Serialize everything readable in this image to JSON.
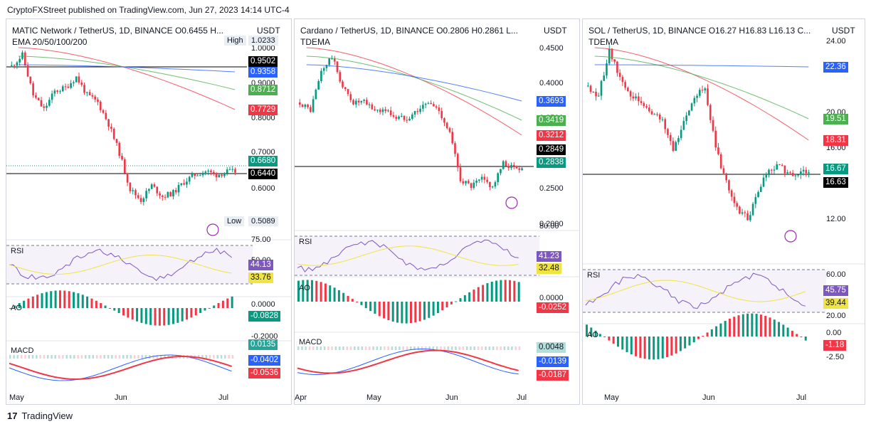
{
  "header": {
    "text": "CryptoFXStreet published on TradingView.com, Jun 27, 2023 14:14 UTC-4"
  },
  "footer": {
    "logo": "17",
    "brand": "TradingView"
  },
  "panels": [
    {
      "title": "MATIC Network / TetherUS, 1D, BINANCE  O0.6455  H...",
      "subtitle": "EMA 20/50/100/200",
      "unit": "USDT",
      "price_labels": [
        "1.0000",
        "0.9000",
        "0.8000",
        "0.7000",
        "0.6000"
      ],
      "badges": [
        {
          "text": "0.9502",
          "color": "#000000"
        },
        {
          "text": "0.9358",
          "color": "#2962ff"
        },
        {
          "text": "0.8712",
          "color": "#4caf50"
        },
        {
          "text": "0.7729",
          "color": "#f23645"
        },
        {
          "text": "0.6680",
          "color": "#089981"
        },
        {
          "text": "0.6440",
          "color": "#000000"
        }
      ],
      "high_label": "High",
      "high_value": "1.0233",
      "low_label": "Low",
      "low_value": "0.5089",
      "rsi_label": "RSI",
      "rsi_levels": [
        "75.00",
        "50.00"
      ],
      "rsi_badges": [
        {
          "text": "44.13",
          "color": "#7e57c2"
        },
        {
          "text": "33.76",
          "color": "#f0e442"
        }
      ],
      "ao_label": "AO",
      "ao_levels": [
        "0.0000",
        "-0.2000"
      ],
      "ao_badge": {
        "text": "-0.0828",
        "color": "#089981"
      },
      "macd_label": "MACD",
      "macd_badges": [
        {
          "text": "0.0135",
          "color": "#26a69a"
        },
        {
          "text": "-0.0402",
          "color": "#2962ff"
        },
        {
          "text": "-0.0536",
          "color": "#f23645"
        }
      ],
      "time_labels": [
        "May",
        "Jun",
        "Jul"
      ]
    },
    {
      "title": "Cardano / TetherUS, 1D, BINANCE  O0.2806  H0.2861  L...",
      "subtitle": "TDEMA",
      "unit": "USDT",
      "price_labels": [
        "0.4500",
        "0.4000",
        "0.3500",
        "0.3000",
        "0.2500",
        "0.2000"
      ],
      "badges": [
        {
          "text": "0.3693",
          "color": "#2962ff"
        },
        {
          "text": "0.3419",
          "color": "#4caf50"
        },
        {
          "text": "0.3212",
          "color": "#f23645"
        },
        {
          "text": "0.2849",
          "color": "#000000"
        },
        {
          "text": "0.2838",
          "color": "#089981"
        }
      ],
      "rsi_label": "RSI",
      "rsi_levels": [
        "80.00"
      ],
      "rsi_badges": [
        {
          "text": "41.23",
          "color": "#7e57c2"
        },
        {
          "text": "32.48",
          "color": "#f0e442"
        }
      ],
      "ao_label": "AO",
      "ao_levels": [
        "0.0000"
      ],
      "ao_badge": {
        "text": "-0.0252",
        "color": "#f23645"
      },
      "macd_label": "MACD",
      "macd_badges": [
        {
          "text": "0.0048",
          "color": "#b2dfdb"
        },
        {
          "text": "-0.0139",
          "color": "#2962ff"
        },
        {
          "text": "-0.0187",
          "color": "#f23645"
        }
      ],
      "time_labels": [
        "Apr",
        "May",
        "Jun",
        "Jul"
      ]
    },
    {
      "title": "SOL / TetherUS, 1D, BINANCE  O16.27  H16.83  L16.13  C...",
      "subtitle": "TDEMA",
      "unit": "USDT",
      "price_labels": [
        "24.00",
        "20.00",
        "16.00",
        "14.00",
        "12.00"
      ],
      "badges": [
        {
          "text": "22.36",
          "color": "#2962ff"
        },
        {
          "text": "19.51",
          "color": "#4caf50"
        },
        {
          "text": "18.31",
          "color": "#f23645"
        },
        {
          "text": "16.67",
          "color": "#089981"
        },
        {
          "text": "16.63",
          "color": "#000000"
        }
      ],
      "rsi_label": "RSI",
      "rsi_levels": [
        "60.00",
        "20.00"
      ],
      "rsi_badges": [
        {
          "text": "45.75",
          "color": "#7e57c2"
        },
        {
          "text": "39.44",
          "color": "#f0e442"
        }
      ],
      "ao_label": "AO",
      "ao_levels": [
        "0.00",
        "-2.50"
      ],
      "ao_badge": {
        "text": "-1.18",
        "color": "#f23645"
      },
      "macd_label": "",
      "macd_badges": [],
      "time_labels": [
        "May",
        "Jun",
        "Jul"
      ]
    }
  ],
  "chart_data": [
    {
      "type": "line",
      "title": "MATIC Network / TetherUS, 1D, BINANCE",
      "x": [
        "May",
        "Jun",
        "Jul"
      ],
      "series": [],
      "ylim": [
        0.5,
        1.05
      ]
    },
    {
      "type": "line",
      "title": "Cardano / TetherUS, 1D, BINANCE",
      "x": [
        "Apr",
        "May",
        "Jun",
        "Jul"
      ],
      "series": [],
      "ylim": [
        0.2,
        0.46
      ]
    },
    {
      "type": "line",
      "title": "SOL / TetherUS, 1D, BINANCE",
      "x": [
        "May",
        "Jun",
        "Jul"
      ],
      "series": [],
      "ylim": [
        12,
        24.5
      ]
    }
  ]
}
